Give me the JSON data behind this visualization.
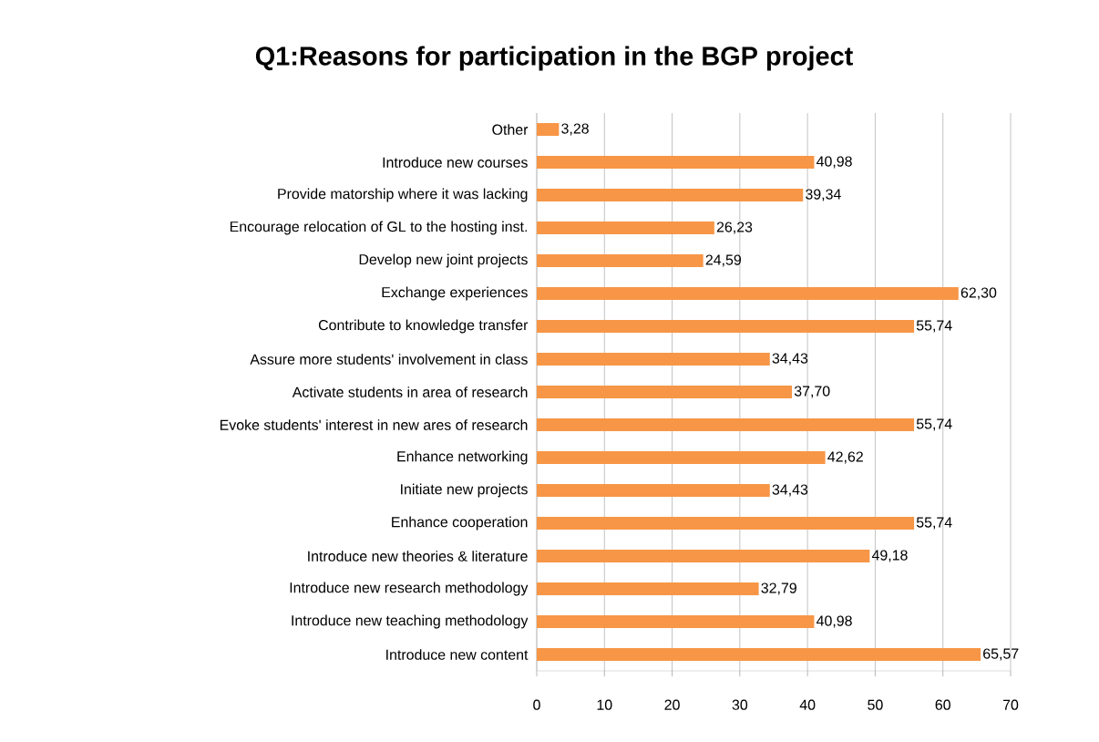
{
  "chart_data": {
    "type": "bar",
    "orientation": "horizontal",
    "title": "Q1:Reasons for participation in the BGP project",
    "categories": [
      "Other",
      "Introduce new courses",
      "Provide matorship where it was lacking",
      "Encourage relocation of GL to the hosting inst.",
      "Develop new joint projects",
      "Exchange experiences",
      "Contribute to knowledge transfer",
      "Assure more students' involvement in class",
      "Activate students in area of research",
      "Evoke students' interest in new ares of research",
      "Enhance networking",
      "Initiate new projects",
      "Enhance cooperation",
      "Introduce new theories & literature",
      "Introduce new research methodology",
      "Introduce new teaching methodology",
      "Introduce new content"
    ],
    "values": [
      3.28,
      40.98,
      39.34,
      26.23,
      24.59,
      62.3,
      55.74,
      34.43,
      37.7,
      55.74,
      42.62,
      34.43,
      55.74,
      49.18,
      32.79,
      40.98,
      65.57
    ],
    "value_labels": [
      "3,28",
      "40,98",
      "39,34",
      "26,23",
      "24,59",
      "62,30",
      "55,74",
      "34,43",
      "37,70",
      "55,74",
      "42,62",
      "34,43",
      "55,74",
      "49,18",
      "32,79",
      "40,98",
      "65,57"
    ],
    "color": "#f79646",
    "xlim": [
      0,
      70
    ],
    "xticks": [
      0,
      10,
      20,
      30,
      40,
      50,
      60,
      70
    ],
    "grid": "x"
  }
}
